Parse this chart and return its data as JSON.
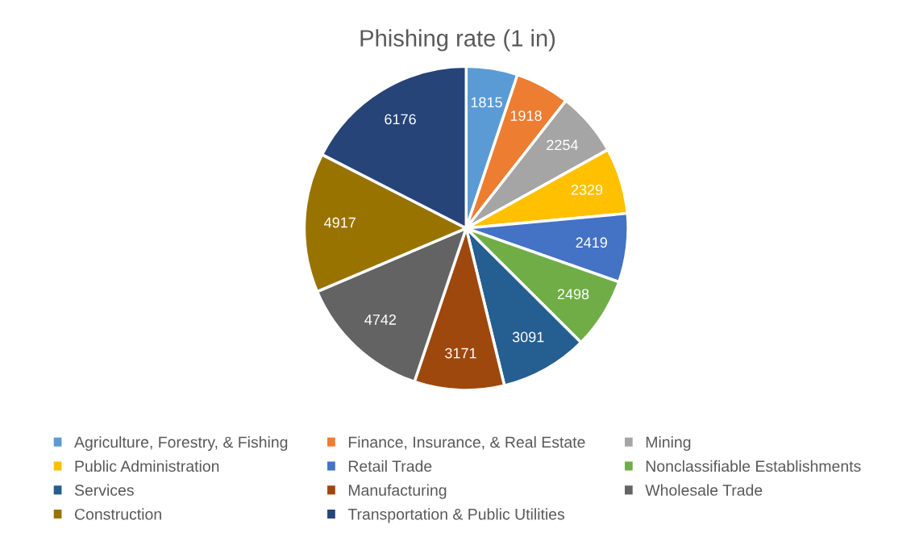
{
  "chart_data": {
    "type": "pie",
    "title": "Phishing rate (1 in)",
    "categories": [
      "Agriculture, Forestry, & Fishing",
      "Finance, Insurance, & Real Estate",
      "Mining",
      "Public Administration",
      "Retail Trade",
      "Nonclassifiable Establishments",
      "Services",
      "Manufacturing",
      "Wholesale Trade",
      "Construction",
      "Transportation & Public Utilities"
    ],
    "values": [
      1815,
      1918,
      2254,
      2329,
      2419,
      2498,
      3091,
      3171,
      4742,
      4917,
      6176
    ],
    "colors": [
      "#5b9bd5",
      "#ed7d31",
      "#a5a5a5",
      "#ffc000",
      "#4472c4",
      "#70ad47",
      "#255e91",
      "#9e480e",
      "#636363",
      "#997300",
      "#264478"
    ],
    "data_labels": true,
    "legend": "bottom"
  }
}
